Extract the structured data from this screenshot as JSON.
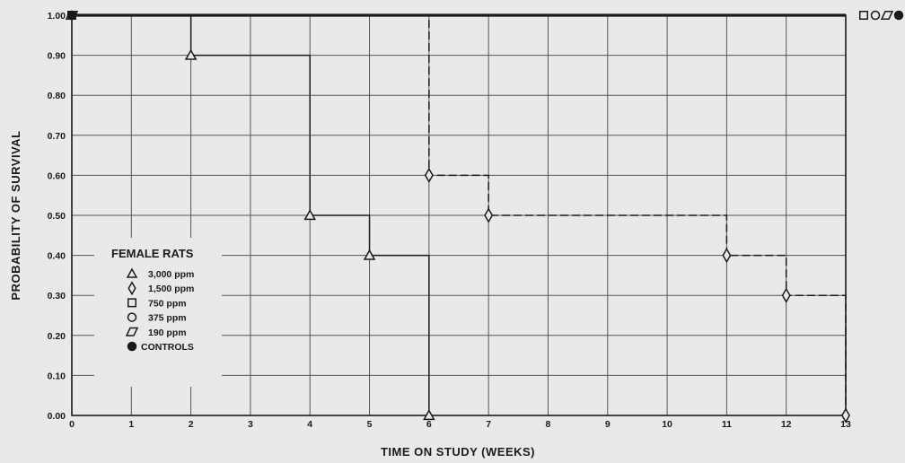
{
  "chart_data": {
    "type": "line",
    "step": true,
    "xlabel": "TIME ON STUDY (WEEKS)",
    "ylabel": "PROBABILITY OF SURVIVAL",
    "xlim": [
      0,
      13
    ],
    "ylim": [
      0,
      1
    ],
    "x_ticks": [
      0,
      1,
      2,
      3,
      4,
      5,
      6,
      7,
      8,
      9,
      10,
      11,
      12,
      13
    ],
    "y_ticks": [
      0,
      0.1,
      0.2,
      0.3,
      0.4,
      0.5,
      0.6,
      0.7,
      0.8,
      0.9,
      1.0
    ],
    "y_tick_labels": [
      "0.00",
      "0.10",
      "0.20",
      "0.30",
      "0.40",
      "0.50",
      "0.60",
      "0.70",
      "0.80",
      "0.90",
      "1.00"
    ],
    "grid": true,
    "legend": {
      "title": "FEMALE RATS",
      "placement": "bottom-left"
    },
    "series": [
      {
        "name": "3,000 ppm",
        "marker": "triangle",
        "line_style": "solid",
        "x": [
          0,
          2,
          4,
          5,
          6
        ],
        "y": [
          1.0,
          0.9,
          0.5,
          0.4,
          0.0
        ]
      },
      {
        "name": "1,500 ppm",
        "marker": "diamond",
        "line_style": "dashed",
        "x": [
          0,
          6,
          7,
          11,
          12,
          13
        ],
        "y": [
          1.0,
          0.6,
          0.5,
          0.4,
          0.3,
          0.0
        ]
      },
      {
        "name": "750 ppm",
        "marker": "square",
        "line_style": "dashed",
        "x": [
          0,
          13
        ],
        "y": [
          1.0,
          1.0
        ]
      },
      {
        "name": "375 ppm",
        "marker": "circle",
        "line_style": "dashdot",
        "x": [
          0,
          13
        ],
        "y": [
          1.0,
          1.0
        ]
      },
      {
        "name": "190 ppm",
        "marker": "parallelogram",
        "line_style": "dashed",
        "x": [
          0,
          13
        ],
        "y": [
          1.0,
          1.0
        ]
      },
      {
        "name": "CONTROLS",
        "marker": "filled-circle",
        "line_style": "solid",
        "x": [
          0,
          13
        ],
        "y": [
          1.0,
          1.0
        ]
      }
    ]
  }
}
